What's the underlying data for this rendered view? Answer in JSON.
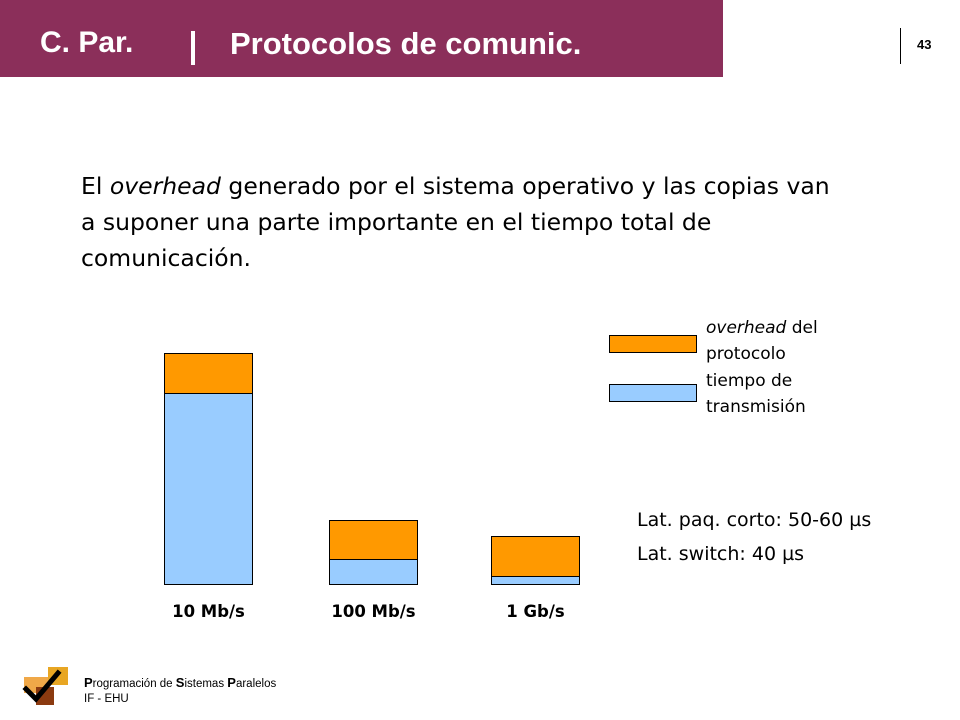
{
  "header": {
    "course": "C. Par.",
    "title": "Protocolos de comunic.",
    "page_number": "43"
  },
  "body": {
    "text_before_em": "El ",
    "text_em": "overhead",
    "text_after_em": " generado por el sistema operativo y las copias van a suponer una parte importante en el tiempo total de comunicación."
  },
  "legend": {
    "overhead_em": "overhead",
    "overhead_rest": " del",
    "overhead_line2": "protocolo",
    "transmission_line1": "tiempo de",
    "transmission_line2": "transmisión"
  },
  "stats": {
    "short_packet_latency": "Lat. paq. corto: 50-60 µs",
    "switch_latency": "Lat. switch: 40 µs"
  },
  "chart_data": {
    "type": "bar",
    "stacked": true,
    "categories": [
      "10 Mb/s",
      "100 Mb/s",
      "1 Gb/s"
    ],
    "series": [
      {
        "name": "tiempo de transmisión",
        "color": "#99ccff",
        "values": [
          191,
          26,
          9
        ]
      },
      {
        "name": "overhead del protocolo",
        "color": "#ff9900",
        "values": [
          40,
          39,
          40
        ]
      }
    ],
    "ylim": [
      0,
      231
    ],
    "grid": false,
    "axes_visible": false,
    "legend_position": "top-right"
  },
  "footer": {
    "line1_parts": [
      {
        "cap": "P",
        "rest": "rogramación de "
      },
      {
        "cap": "S",
        "rest": "istemas "
      },
      {
        "cap": "P",
        "rest": "aralelos"
      }
    ],
    "line2": "IF - EHU"
  },
  "colors": {
    "header_band": "#8b2f5a",
    "overhead": "#ff9900",
    "transmission": "#99ccff"
  }
}
